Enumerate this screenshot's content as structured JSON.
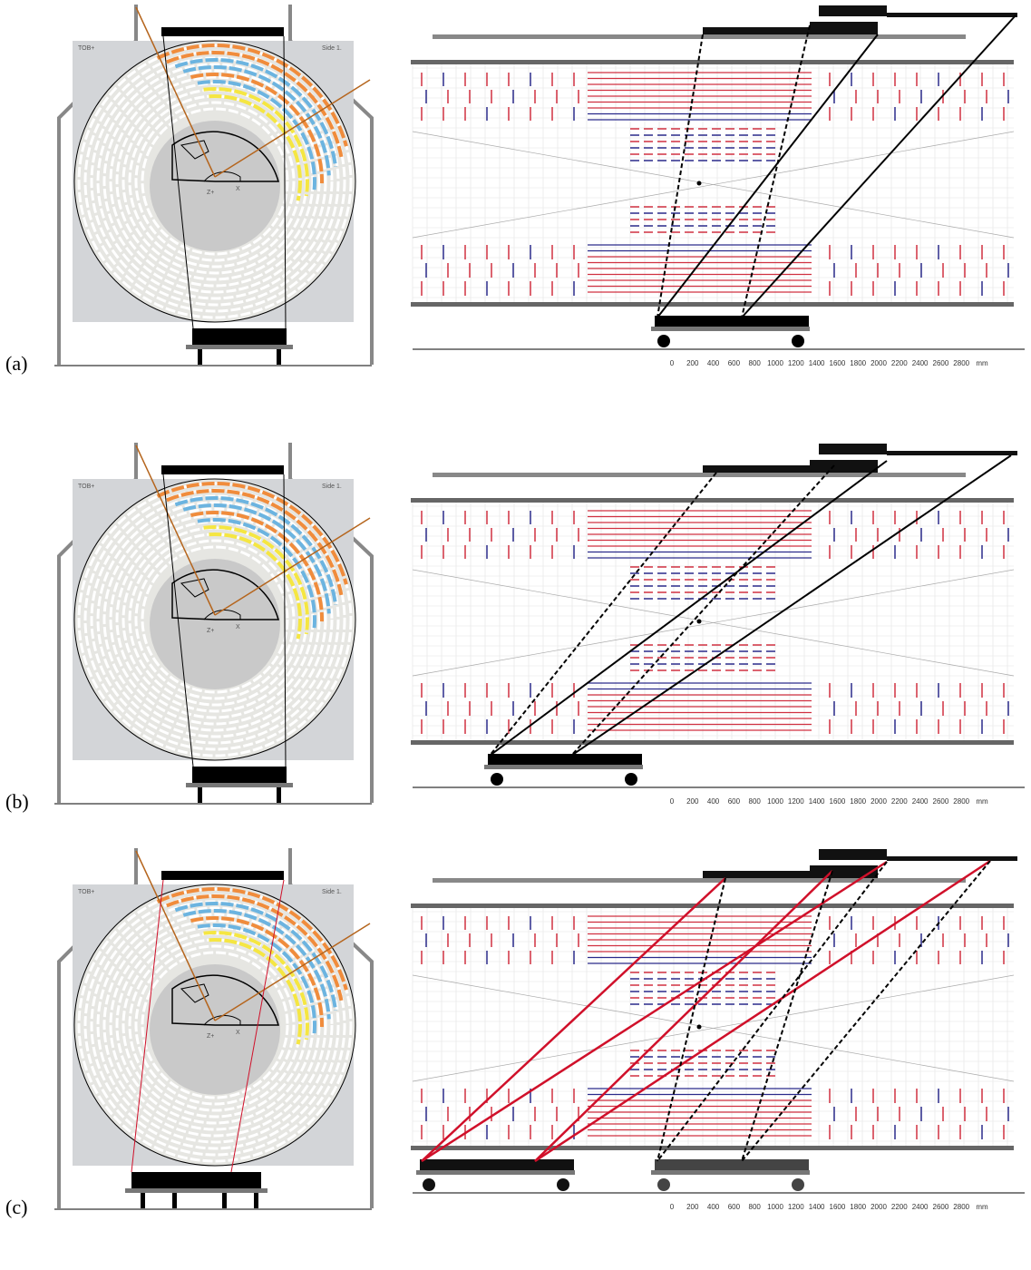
{
  "panels": [
    {
      "label": "(a)",
      "detector": {
        "top_left": "TOB+",
        "top_right": "Side 1.",
        "z": "Z+",
        "x": "X"
      },
      "scale": [
        "0",
        "200",
        "400",
        "600",
        "800",
        "1000",
        "1200",
        "1400",
        "1600",
        "1800",
        "2000",
        "2200",
        "2400",
        "2600",
        "2800",
        "mm"
      ]
    },
    {
      "label": "(b)",
      "detector": {
        "top_left": "TOB+",
        "top_right": "Side 1.",
        "z": "Z+",
        "x": "X"
      },
      "scale": [
        "0",
        "200",
        "400",
        "600",
        "800",
        "1000",
        "1200",
        "1400",
        "1600",
        "1800",
        "2000",
        "2200",
        "2400",
        "2600",
        "2800",
        "mm"
      ]
    },
    {
      "label": "(c)",
      "detector": {
        "top_left": "TOB+",
        "top_right": "Side 1.",
        "z": "Z+",
        "x": "X"
      },
      "scale": [
        "0",
        "200",
        "400",
        "600",
        "800",
        "1000",
        "1200",
        "1400",
        "1600",
        "1800",
        "2000",
        "2200",
        "2400",
        "2600",
        "2800",
        "mm"
      ]
    }
  ]
}
